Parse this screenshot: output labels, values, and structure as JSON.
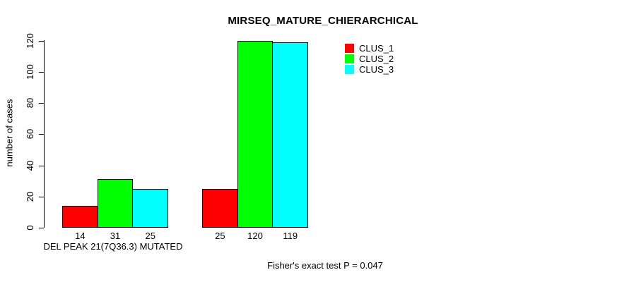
{
  "chart_data": {
    "type": "bar",
    "title": "MIRSEQ_MATURE_CHIERARCHICAL",
    "ylabel": "number of cases",
    "xlabel": "DEL PEAK 21(7Q36.3) MUTATED",
    "annotation": "Fisher's exact test P = 0.047",
    "categories": [
      "DEL PEAK 21(7Q36.3) MUTATED",
      ""
    ],
    "series": [
      {
        "name": "CLUS_1",
        "color": "#ff0000",
        "values": [
          14,
          25
        ]
      },
      {
        "name": "CLUS_2",
        "color": "#00ff00",
        "values": [
          31,
          120
        ]
      },
      {
        "name": "CLUS_3",
        "color": "#00ffff",
        "values": [
          25,
          119
        ]
      }
    ],
    "yticks": [
      0,
      20,
      40,
      60,
      80,
      100,
      120
    ],
    "ylim": [
      0,
      120
    ],
    "show_bar_value_labels": true,
    "grid": false,
    "legend_position": "top-right",
    "background_color": "#ffffff",
    "axis_color": "#000000",
    "bar_border_color": "#000000"
  }
}
